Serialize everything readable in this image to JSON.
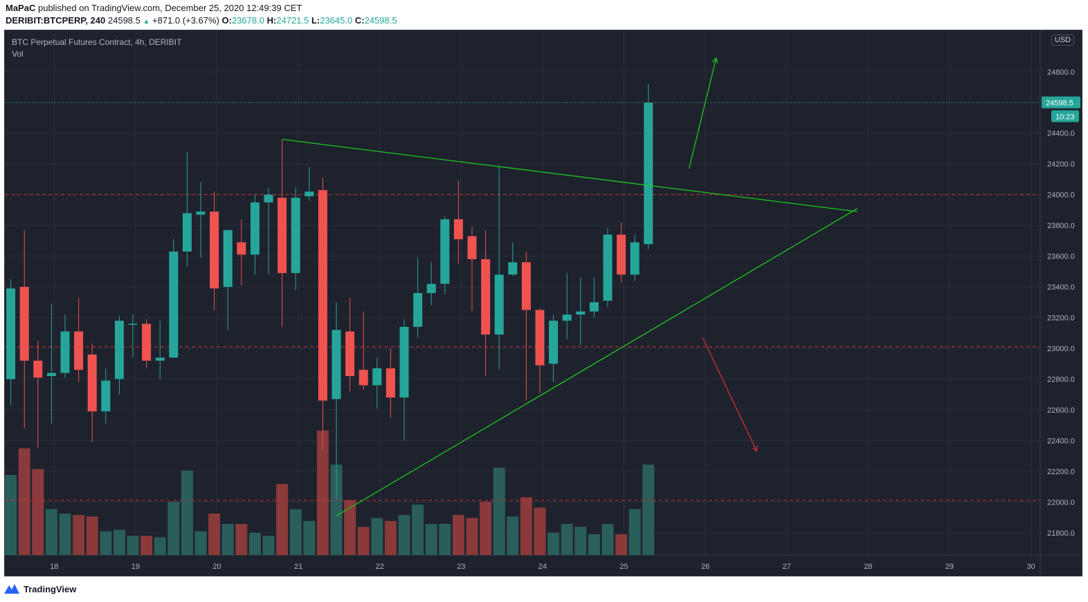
{
  "header": {
    "author": "MaPaC",
    "published_text": "published on TradingView.com, December 25, 2020 12:49:39 CET",
    "symbol": "DERIBIT:BTCPERP, 240",
    "last": "24598.5",
    "change": "+871.0 (+3.67%)",
    "o_label": "O:",
    "o_value": "23678.0",
    "h_label": "H:",
    "h_value": "24721.5",
    "l_label": "L:",
    "l_value": "23645.0",
    "c_label": "C:",
    "c_value": "24598.5"
  },
  "chart_info": {
    "title": "BTC Perpetual Futures Contract, 4h, DERIBIT",
    "volume_label": "Vol"
  },
  "price_scale": {
    "currency": "USD",
    "last_price_label": "24598.5",
    "countdown_label": "10:23"
  },
  "footer": {
    "brand": "TradingView"
  },
  "colors": {
    "background": "#1e222d",
    "up": "#26a69a",
    "down": "#ef5350",
    "vol_up": "#2a5e5b",
    "vol_down": "#8a3a3a",
    "trendline": "#1ec81e",
    "hline": "#d32f2f",
    "arrow_up": "#1ec81e",
    "arrow_down": "#d32f2f"
  },
  "chart_data": {
    "type": "candlestick",
    "title": "BTC Perpetual Futures Contract, 4h, DERIBIT",
    "timeframe": "4h",
    "x_ticks": [
      "18",
      "19",
      "20",
      "21",
      "22",
      "23",
      "24",
      "25",
      "26",
      "27",
      "28",
      "29",
      "30"
    ],
    "y_ticks": [
      "21800.0",
      "22000.0",
      "22200.0",
      "22400.0",
      "22600.0",
      "22800.0",
      "23000.0",
      "23200.0",
      "23400.0",
      "23600.0",
      "23800.0",
      "24000.0",
      "24200.0",
      "24400.0",
      "24600.0",
      "24800.0"
    ],
    "y_range": [
      21650,
      25000
    ],
    "candles": [
      {
        "o": 22800,
        "h": 23450,
        "l": 22630,
        "c": 23390,
        "v": 5.4
      },
      {
        "o": 23400,
        "h": 23770,
        "l": 22480,
        "c": 22920,
        "v": 7.2
      },
      {
        "o": 22920,
        "h": 23050,
        "l": 22350,
        "c": 22810,
        "v": 5.8
      },
      {
        "o": 22820,
        "h": 23290,
        "l": 22510,
        "c": 22840,
        "v": 3.1
      },
      {
        "o": 22840,
        "h": 23220,
        "l": 22810,
        "c": 23110,
        "v": 2.8
      },
      {
        "o": 23110,
        "h": 23330,
        "l": 22780,
        "c": 22860,
        "v": 2.7
      },
      {
        "o": 22960,
        "h": 23030,
        "l": 22390,
        "c": 22590,
        "v": 2.6
      },
      {
        "o": 22590,
        "h": 22870,
        "l": 22510,
        "c": 22790,
        "v": 1.6
      },
      {
        "o": 22800,
        "h": 23210,
        "l": 22700,
        "c": 23180,
        "v": 1.7
      },
      {
        "o": 23160,
        "h": 23220,
        "l": 22940,
        "c": 23160,
        "v": 1.3
      },
      {
        "o": 23160,
        "h": 23190,
        "l": 22870,
        "c": 22920,
        "v": 1.3
      },
      {
        "o": 22920,
        "h": 23180,
        "l": 22800,
        "c": 22940,
        "v": 1.2
      },
      {
        "o": 22940,
        "h": 23710,
        "l": 22940,
        "c": 23630,
        "v": 3.6
      },
      {
        "o": 23630,
        "h": 24280,
        "l": 23530,
        "c": 23880,
        "v": 5.7
      },
      {
        "o": 23870,
        "h": 24080,
        "l": 23590,
        "c": 23890,
        "v": 1.6
      },
      {
        "o": 23890,
        "h": 24020,
        "l": 23250,
        "c": 23390,
        "v": 2.8
      },
      {
        "o": 23400,
        "h": 23770,
        "l": 23120,
        "c": 23770,
        "v": 2.1
      },
      {
        "o": 23690,
        "h": 23840,
        "l": 23410,
        "c": 23610,
        "v": 2.1
      },
      {
        "o": 23610,
        "h": 24000,
        "l": 23480,
        "c": 23950,
        "v": 1.5
      },
      {
        "o": 23950,
        "h": 24040,
        "l": 23480,
        "c": 24000,
        "v": 1.3
      },
      {
        "o": 23980,
        "h": 24360,
        "l": 23140,
        "c": 23490,
        "v": 4.8
      },
      {
        "o": 23490,
        "h": 24050,
        "l": 23380,
        "c": 23980,
        "v": 3.1
      },
      {
        "o": 23990,
        "h": 24180,
        "l": 23960,
        "c": 24020,
        "v": 2.3
      },
      {
        "o": 24030,
        "h": 24110,
        "l": 22340,
        "c": 22660,
        "v": 8.4
      },
      {
        "o": 22670,
        "h": 23300,
        "l": 22020,
        "c": 23120,
        "v": 6.1
      },
      {
        "o": 23110,
        "h": 23330,
        "l": 22720,
        "c": 22820,
        "v": 3.7
      },
      {
        "o": 22860,
        "h": 23240,
        "l": 22730,
        "c": 22760,
        "v": 1.9
      },
      {
        "o": 22760,
        "h": 22940,
        "l": 22610,
        "c": 22870,
        "v": 2.5
      },
      {
        "o": 22870,
        "h": 23000,
        "l": 22550,
        "c": 22680,
        "v": 2.3
      },
      {
        "o": 22680,
        "h": 23190,
        "l": 22400,
        "c": 23140,
        "v": 2.7
      },
      {
        "o": 23140,
        "h": 23590,
        "l": 23070,
        "c": 23360,
        "v": 3.4
      },
      {
        "o": 23360,
        "h": 23560,
        "l": 23280,
        "c": 23420,
        "v": 2.1
      },
      {
        "o": 23420,
        "h": 23860,
        "l": 23350,
        "c": 23840,
        "v": 2.1
      },
      {
        "o": 23840,
        "h": 24090,
        "l": 23550,
        "c": 23710,
        "v": 2.7
      },
      {
        "o": 23730,
        "h": 23790,
        "l": 23240,
        "c": 23580,
        "v": 2.5
      },
      {
        "o": 23580,
        "h": 23770,
        "l": 22820,
        "c": 23090,
        "v": 3.6
      },
      {
        "o": 23090,
        "h": 24190,
        "l": 22860,
        "c": 23480,
        "v": 5.9
      },
      {
        "o": 23480,
        "h": 23690,
        "l": 23470,
        "c": 23560,
        "v": 2.6
      },
      {
        "o": 23560,
        "h": 23630,
        "l": 22660,
        "c": 23250,
        "v": 3.9
      },
      {
        "o": 23250,
        "h": 23260,
        "l": 22710,
        "c": 22890,
        "v": 3.2
      },
      {
        "o": 22900,
        "h": 23220,
        "l": 22780,
        "c": 23180,
        "v": 1.5
      },
      {
        "o": 23180,
        "h": 23490,
        "l": 23060,
        "c": 23220,
        "v": 2.1
      },
      {
        "o": 23220,
        "h": 23460,
        "l": 23020,
        "c": 23240,
        "v": 1.9
      },
      {
        "o": 23240,
        "h": 23460,
        "l": 23200,
        "c": 23300,
        "v": 1.4
      },
      {
        "o": 23310,
        "h": 23780,
        "l": 23270,
        "c": 23740,
        "v": 2.1
      },
      {
        "o": 23740,
        "h": 23820,
        "l": 23430,
        "c": 23480,
        "v": 1.4
      },
      {
        "o": 23480,
        "h": 23740,
        "l": 23440,
        "c": 23690,
        "v": 3.1
      },
      {
        "o": 23678,
        "h": 24721.5,
        "l": 23645,
        "c": 24598.5,
        "v": 6.1
      }
    ],
    "horizontal_levels": [
      24000,
      23010,
      22010
    ],
    "trendlines": [
      {
        "from": {
          "bar": 20,
          "price": 24360
        },
        "to": {
          "bar": 62.4,
          "price": 23890
        }
      },
      {
        "from": {
          "bar": 24,
          "price": 21910
        },
        "to": {
          "bar": 62.4,
          "price": 23910
        }
      }
    ],
    "arrows": [
      {
        "color": "up",
        "from": {
          "bar": 50,
          "price": 24170
        },
        "to": {
          "bar": 52,
          "price": 24890
        }
      },
      {
        "color": "down",
        "from": {
          "bar": 51,
          "price": 23070
        },
        "to": {
          "bar": 55,
          "price": 22330
        }
      }
    ],
    "last_price": 24598.5,
    "grid": true
  }
}
